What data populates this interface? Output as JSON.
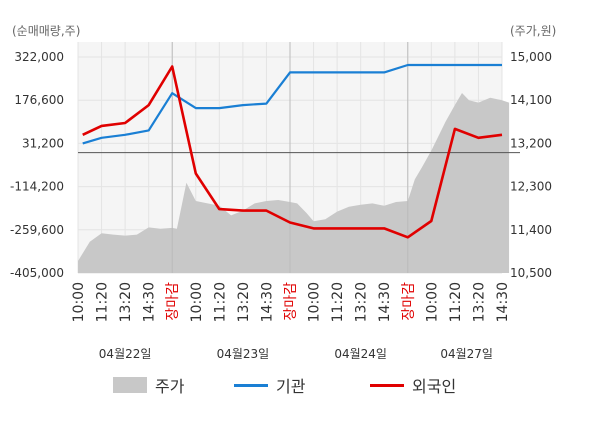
{
  "units": {
    "left": "(순매매량,주)",
    "right": "(주가,원)"
  },
  "chart_data": {
    "type": "line",
    "left_axis": {
      "label": "(순매매량,주)",
      "min": -405000,
      "max": 322000,
      "ticks": [
        {
          "value": 322000,
          "label": "322,000"
        },
        {
          "value": 176600,
          "label": "176,600"
        },
        {
          "value": 31200,
          "label": "31,200"
        },
        {
          "value": -114200,
          "label": "-114,200"
        },
        {
          "value": -259600,
          "label": "-259,600"
        },
        {
          "value": -405000,
          "label": "-405,000"
        }
      ]
    },
    "right_axis": {
      "label": "(주가,원)",
      "min": 10500,
      "max": 15000,
      "ticks": [
        {
          "value": 15000,
          "label": "15,000"
        },
        {
          "value": 14100,
          "label": "14,100"
        },
        {
          "value": 13200,
          "label": "13,200"
        },
        {
          "value": 12300,
          "label": "12,300"
        },
        {
          "value": 11400,
          "label": "11,400"
        },
        {
          "value": 10500,
          "label": "10,500"
        }
      ]
    },
    "x_ticks": [
      "10:00",
      "11:20",
      "13:20",
      "14:30",
      "장마감",
      "10:00",
      "11:20",
      "13:20",
      "14:30",
      "장마감",
      "10:00",
      "11:20",
      "13:20",
      "14:30",
      "장마감",
      "10:00",
      "11:20",
      "13:20",
      "14:30"
    ],
    "close_label": "장마감",
    "dates": [
      "04월22일",
      "04월23일",
      "04월24일",
      "04월27일"
    ],
    "zero_line": 0,
    "series": [
      {
        "name": "주가",
        "kind": "area",
        "color": "#c8c8c8",
        "x": [
          0,
          0.5,
          1,
          1.5,
          2,
          2.5,
          3,
          3.5,
          4,
          4.2,
          4.6,
          5,
          5.5,
          6,
          6.5,
          7,
          7.5,
          8,
          8.5,
          9,
          9.3,
          9.7,
          10,
          10.5,
          11,
          11.5,
          12,
          12.5,
          13,
          13.5,
          14,
          14.3,
          14.6,
          15,
          15.3,
          15.6,
          16,
          16.3,
          16.6,
          17,
          17.5,
          18,
          18.3
        ],
        "values": [
          10750,
          11150,
          11330,
          11300,
          11280,
          11300,
          11450,
          11420,
          11440,
          11420,
          12380,
          12000,
          11950,
          11900,
          11700,
          11800,
          11950,
          12000,
          12020,
          11980,
          11950,
          11750,
          11580,
          11620,
          11780,
          11880,
          11920,
          11950,
          11900,
          11980,
          12000,
          12450,
          12700,
          13050,
          13350,
          13650,
          14000,
          14250,
          14100,
          14050,
          14150,
          14100,
          14050
        ]
      },
      {
        "name": "기관",
        "kind": "line",
        "color": "#1a7fd4",
        "x": [
          0.2,
          1,
          2,
          3,
          4,
          5,
          6,
          7,
          8,
          9,
          10,
          11,
          12,
          13,
          14,
          15,
          16,
          17,
          18
        ],
        "values": [
          31200,
          50000,
          60000,
          75000,
          200000,
          150000,
          150000,
          160000,
          165000,
          270000,
          270000,
          270000,
          270000,
          270000,
          295000,
          295000,
          295000,
          295000,
          295000
        ]
      },
      {
        "name": "외국인",
        "kind": "line",
        "color": "#e00000",
        "x": [
          0.2,
          1,
          2,
          3,
          4,
          5,
          6,
          7,
          8,
          9,
          10,
          11,
          12,
          13,
          14,
          15,
          16,
          17,
          18
        ],
        "values": [
          60000,
          90000,
          100000,
          160000,
          290000,
          -70000,
          -190000,
          -195000,
          -195000,
          -235000,
          -255000,
          -255000,
          -255000,
          -255000,
          -285000,
          -230000,
          80000,
          50000,
          60000
        ]
      }
    ]
  },
  "legend": [
    {
      "name": "주가",
      "kind": "area",
      "color": "#c8c8c8"
    },
    {
      "name": "기관",
      "kind": "line",
      "color": "#1a7fd4"
    },
    {
      "name": "외국인",
      "kind": "line",
      "color": "#e00000"
    }
  ]
}
